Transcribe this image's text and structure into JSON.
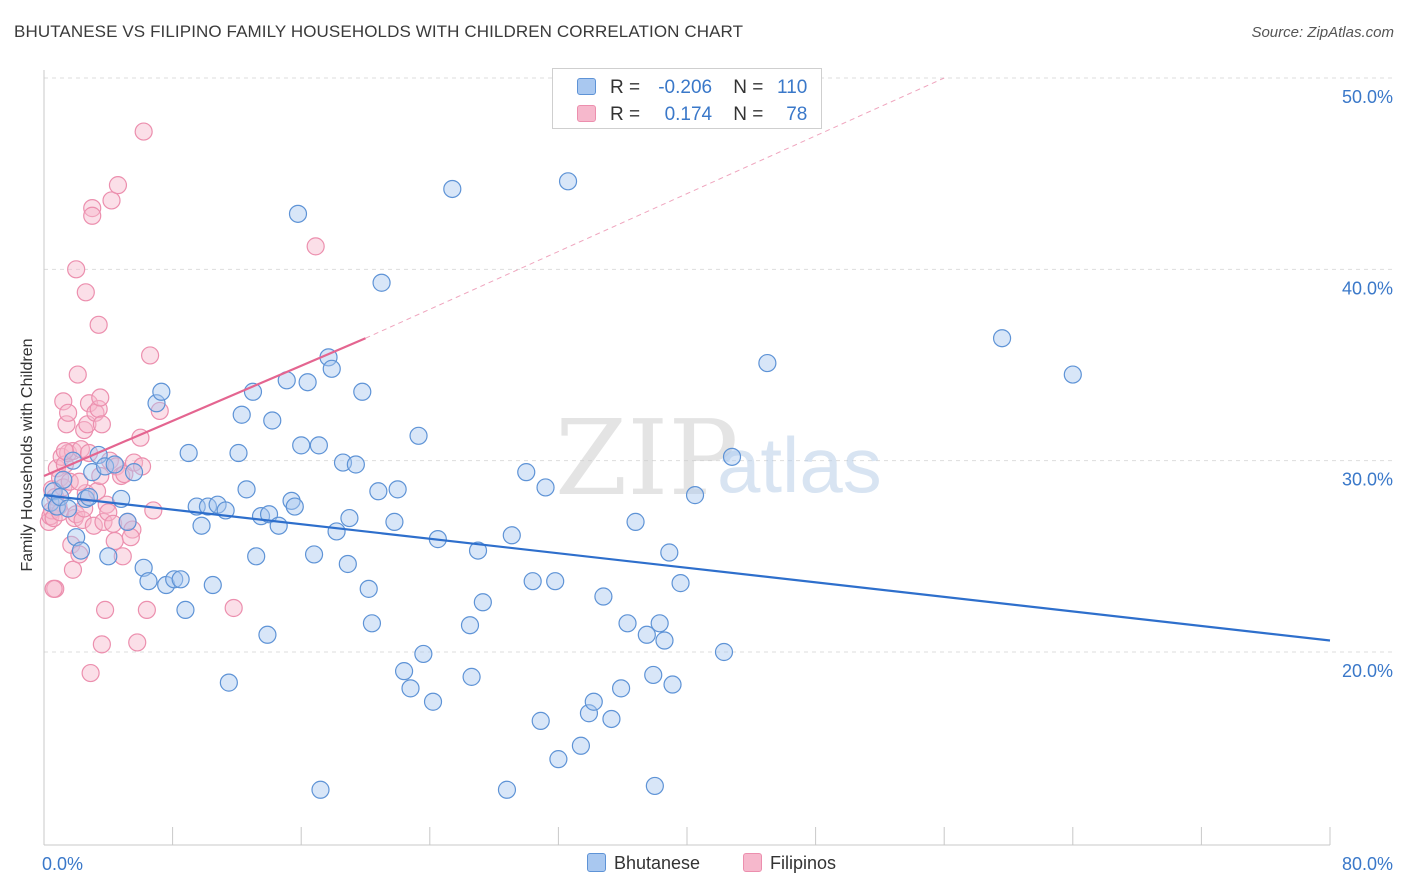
{
  "title": "BHUTANESE VS FILIPINO FAMILY HOUSEHOLDS WITH CHILDREN CORRELATION CHART",
  "source": "Source: ZipAtlas.com",
  "watermark": {
    "zip": "ZIP",
    "atlas": "atlas"
  },
  "legend": {
    "rows": [
      {
        "r_label": "R =",
        "r_value": "-0.206",
        "n_label": "N =",
        "n_value": "110"
      },
      {
        "r_label": "R =",
        "r_value": "0.174",
        "n_label": "N =",
        "n_value": "78"
      }
    ]
  },
  "bottom_legend": {
    "bhutanese": "Bhutanese",
    "filipinos": "Filipinos"
  },
  "colors": {
    "blue_fill": "#a9c8f0",
    "blue_stroke": "#5e93d6",
    "blue_line": "#2e6fcc",
    "pink_fill": "#f6b8cc",
    "pink_stroke": "#ec8fae",
    "pink_line": "#e46590",
    "axis_text": "#3a78c9",
    "grid": "#dddddd"
  },
  "chart_data": {
    "type": "scatter",
    "title": "BHUTANESE VS FILIPINO FAMILY HOUSEHOLDS WITH CHILDREN CORRELATION CHART",
    "xlabel": "",
    "ylabel": "Family Households with Children",
    "x_tick_labels": [
      "0.0%",
      "80.0%"
    ],
    "y_tick_labels": [
      "20.0%",
      "30.0%",
      "40.0%",
      "50.0%"
    ],
    "xlim": [
      0,
      80
    ],
    "ylim": [
      10,
      52
    ],
    "y_ticks": [
      20,
      30,
      40,
      50
    ],
    "grid": true,
    "series": [
      {
        "name": "Bhutanese",
        "R": -0.206,
        "N": 110,
        "trend": {
          "x": [
            0,
            80
          ],
          "y": [
            28.2,
            20.6
          ]
        },
        "points": [
          [
            0.4,
            27.8
          ],
          [
            0.6,
            28.4
          ],
          [
            0.8,
            27.6
          ],
          [
            1.0,
            28.1
          ],
          [
            1.2,
            29.0
          ],
          [
            1.5,
            27.5
          ],
          [
            1.8,
            30.0
          ],
          [
            2.0,
            26.0
          ],
          [
            2.3,
            25.3
          ],
          [
            2.6,
            28.0
          ],
          [
            2.8,
            28.1
          ],
          [
            3.0,
            29.4
          ],
          [
            3.4,
            30.3
          ],
          [
            3.8,
            29.7
          ],
          [
            4.0,
            25.0
          ],
          [
            4.4,
            29.8
          ],
          [
            4.8,
            28.0
          ],
          [
            5.2,
            26.8
          ],
          [
            5.6,
            29.4
          ],
          [
            6.2,
            24.4
          ],
          [
            6.5,
            23.7
          ],
          [
            7.0,
            33.0
          ],
          [
            7.3,
            33.6
          ],
          [
            7.6,
            23.5
          ],
          [
            8.1,
            23.8
          ],
          [
            8.5,
            23.8
          ],
          [
            8.8,
            22.2
          ],
          [
            9.0,
            30.4
          ],
          [
            9.5,
            27.6
          ],
          [
            9.8,
            26.6
          ],
          [
            10.2,
            27.6
          ],
          [
            10.5,
            23.5
          ],
          [
            10.8,
            27.7
          ],
          [
            11.3,
            27.4
          ],
          [
            11.5,
            18.4
          ],
          [
            12.1,
            30.4
          ],
          [
            12.3,
            32.4
          ],
          [
            12.6,
            28.5
          ],
          [
            13.0,
            33.6
          ],
          [
            13.2,
            25.0
          ],
          [
            13.5,
            27.1
          ],
          [
            13.9,
            20.9
          ],
          [
            14.2,
            32.1
          ],
          [
            14.0,
            27.2
          ],
          [
            14.6,
            26.6
          ],
          [
            15.1,
            34.2
          ],
          [
            15.4,
            27.9
          ],
          [
            15.6,
            27.6
          ],
          [
            15.8,
            42.9
          ],
          [
            16.0,
            30.8
          ],
          [
            16.4,
            34.1
          ],
          [
            16.8,
            25.1
          ],
          [
            17.1,
            30.8
          ],
          [
            17.2,
            12.8
          ],
          [
            17.7,
            35.4
          ],
          [
            17.9,
            34.8
          ],
          [
            18.2,
            26.3
          ],
          [
            18.6,
            29.9
          ],
          [
            18.9,
            24.6
          ],
          [
            19.0,
            27.0
          ],
          [
            19.4,
            29.8
          ],
          [
            19.8,
            33.6
          ],
          [
            20.2,
            23.3
          ],
          [
            20.4,
            21.5
          ],
          [
            20.8,
            28.4
          ],
          [
            21.0,
            39.3
          ],
          [
            21.8,
            26.8
          ],
          [
            22.0,
            28.5
          ],
          [
            22.4,
            19.0
          ],
          [
            22.8,
            18.1
          ],
          [
            23.3,
            31.3
          ],
          [
            23.6,
            19.9
          ],
          [
            24.2,
            17.4
          ],
          [
            24.5,
            25.9
          ],
          [
            25.4,
            44.2
          ],
          [
            26.5,
            21.4
          ],
          [
            26.6,
            18.7
          ],
          [
            27.0,
            25.3
          ],
          [
            27.3,
            22.6
          ],
          [
            28.8,
            12.8
          ],
          [
            29.1,
            26.1
          ],
          [
            30.0,
            29.4
          ],
          [
            30.4,
            23.7
          ],
          [
            30.9,
            16.4
          ],
          [
            31.2,
            28.6
          ],
          [
            31.8,
            23.7
          ],
          [
            32.0,
            14.4
          ],
          [
            32.6,
            44.6
          ],
          [
            33.4,
            15.1
          ],
          [
            33.9,
            16.8
          ],
          [
            34.2,
            17.4
          ],
          [
            34.8,
            22.9
          ],
          [
            35.3,
            16.5
          ],
          [
            35.9,
            18.1
          ],
          [
            36.3,
            21.5
          ],
          [
            36.8,
            26.8
          ],
          [
            37.5,
            20.9
          ],
          [
            37.9,
            18.8
          ],
          [
            38.0,
            13.0
          ],
          [
            38.3,
            21.5
          ],
          [
            38.6,
            20.6
          ],
          [
            38.9,
            25.2
          ],
          [
            39.1,
            18.3
          ],
          [
            39.6,
            23.6
          ],
          [
            40.5,
            28.2
          ],
          [
            42.3,
            20.0
          ],
          [
            42.8,
            30.2
          ],
          [
            45.0,
            35.1
          ],
          [
            59.6,
            36.4
          ],
          [
            64.0,
            34.5
          ]
        ]
      },
      {
        "name": "Filipinos",
        "R": 0.174,
        "N": 78,
        "trend": {
          "x": [
            0,
            20
          ],
          "y": [
            29.2,
            36.4
          ]
        },
        "trend_dashed": {
          "x": [
            20,
            56
          ],
          "y": [
            36.4,
            50.0
          ]
        },
        "points": [
          [
            0.3,
            26.8
          ],
          [
            0.4,
            27.1
          ],
          [
            0.5,
            27.4
          ],
          [
            0.5,
            28.5
          ],
          [
            0.6,
            27.0
          ],
          [
            0.7,
            23.3
          ],
          [
            0.7,
            28.1
          ],
          [
            0.8,
            29.6
          ],
          [
            0.9,
            27.6
          ],
          [
            1.0,
            29.1
          ],
          [
            1.0,
            27.3
          ],
          [
            1.1,
            30.2
          ],
          [
            1.2,
            28.6
          ],
          [
            1.2,
            33.1
          ],
          [
            1.3,
            29.8
          ],
          [
            1.4,
            31.9
          ],
          [
            1.5,
            32.5
          ],
          [
            1.5,
            30.4
          ],
          [
            1.6,
            28.9
          ],
          [
            1.7,
            25.6
          ],
          [
            1.8,
            24.3
          ],
          [
            1.8,
            30.5
          ],
          [
            1.9,
            27.0
          ],
          [
            2.0,
            27.2
          ],
          [
            2.0,
            40.0
          ],
          [
            2.1,
            34.5
          ],
          [
            2.2,
            25.1
          ],
          [
            2.3,
            30.6
          ],
          [
            2.4,
            26.9
          ],
          [
            2.5,
            27.5
          ],
          [
            2.5,
            31.6
          ],
          [
            2.6,
            28.3
          ],
          [
            2.6,
            38.8
          ],
          [
            2.7,
            31.9
          ],
          [
            2.8,
            33.0
          ],
          [
            2.8,
            30.4
          ],
          [
            2.9,
            18.9
          ],
          [
            3.0,
            43.2
          ],
          [
            3.0,
            42.8
          ],
          [
            3.1,
            26.6
          ],
          [
            3.2,
            32.5
          ],
          [
            3.3,
            28.4
          ],
          [
            3.4,
            32.7
          ],
          [
            3.4,
            37.1
          ],
          [
            3.5,
            33.3
          ],
          [
            3.6,
            20.4
          ],
          [
            3.6,
            31.9
          ],
          [
            3.7,
            26.8
          ],
          [
            3.8,
            22.2
          ],
          [
            3.9,
            27.7
          ],
          [
            4.0,
            27.3
          ],
          [
            4.1,
            30.0
          ],
          [
            4.2,
            43.6
          ],
          [
            4.3,
            26.7
          ],
          [
            4.4,
            25.8
          ],
          [
            4.5,
            29.7
          ],
          [
            4.6,
            44.4
          ],
          [
            4.8,
            29.2
          ],
          [
            4.9,
            25.0
          ],
          [
            5.0,
            29.3
          ],
          [
            5.2,
            26.8
          ],
          [
            5.5,
            26.4
          ],
          [
            5.6,
            29.9
          ],
          [
            5.8,
            20.5
          ],
          [
            6.0,
            31.2
          ],
          [
            6.1,
            29.7
          ],
          [
            6.2,
            47.2
          ],
          [
            6.4,
            22.2
          ],
          [
            6.6,
            35.5
          ],
          [
            7.2,
            32.6
          ],
          [
            11.8,
            22.3
          ],
          [
            16.9,
            41.2
          ],
          [
            1.3,
            30.5
          ],
          [
            2.2,
            28.9
          ],
          [
            3.5,
            29.2
          ],
          [
            5.4,
            26.0
          ],
          [
            6.8,
            27.4
          ],
          [
            0.6,
            23.3
          ]
        ]
      }
    ]
  }
}
